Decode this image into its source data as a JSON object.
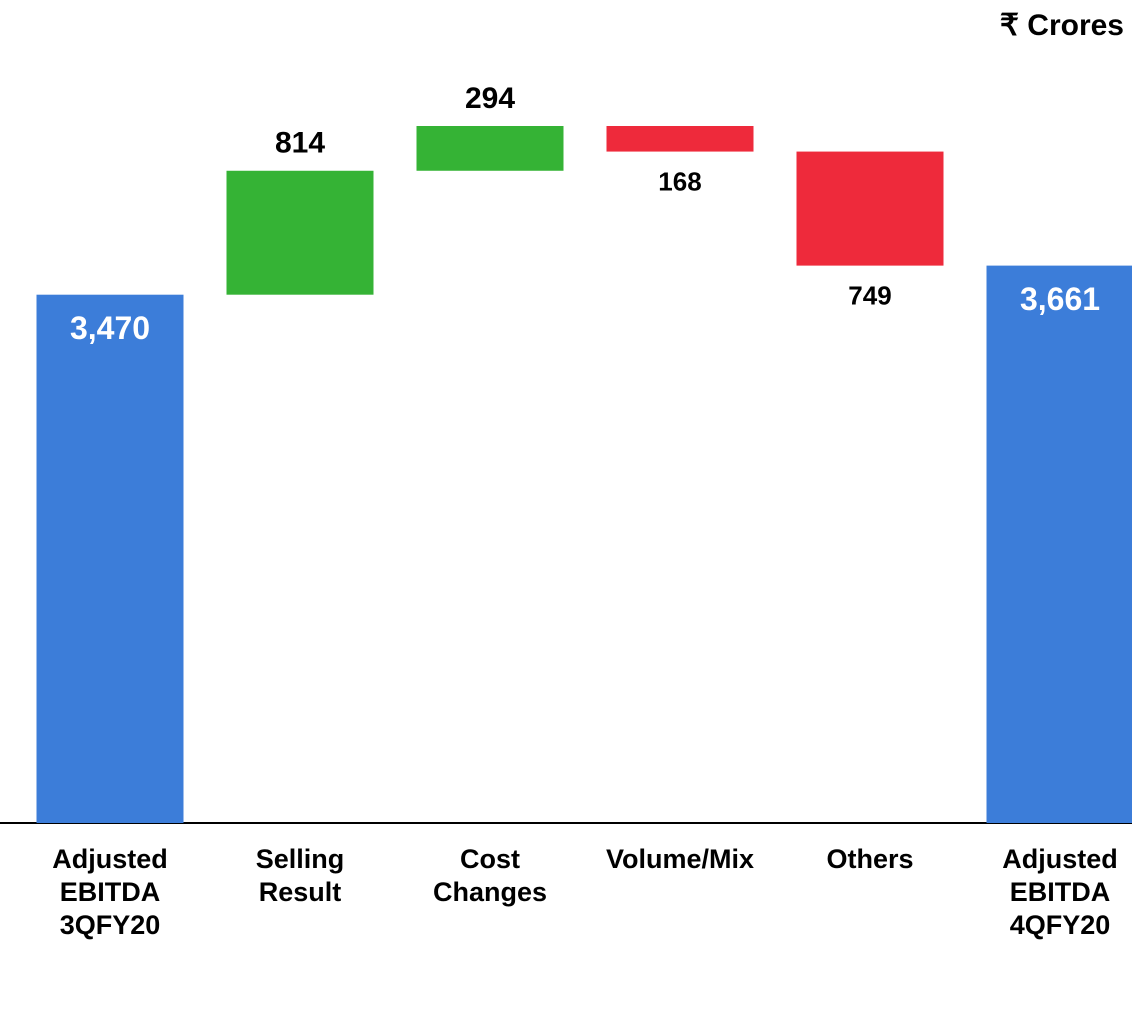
{
  "chart_data": {
    "type": "waterfall",
    "unit": "₹ Crores",
    "categories": [
      "Adjusted\nEBITDA\n3QFY20",
      "Selling\nResult",
      "Cost\nChanges",
      "Volume/Mix",
      "Others",
      "Adjusted\nEBITDA\n4QFY20"
    ],
    "values": [
      3470,
      814,
      294,
      -168,
      -749,
      3661
    ],
    "value_labels": [
      "3,470",
      "814",
      "294",
      "168",
      "749",
      "3,661"
    ],
    "colors": {
      "total": "#3c7dd9",
      "increase": "#35b335",
      "decrease": "#ee2a3b"
    }
  }
}
